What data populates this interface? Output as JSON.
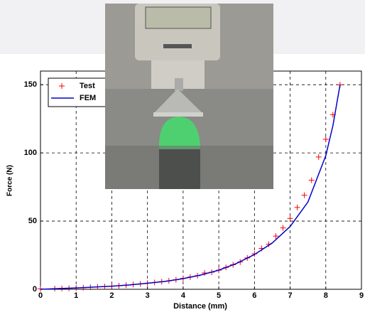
{
  "chart_data": {
    "type": "line",
    "xlabel": "Distance (mm)",
    "ylabel": "Force (N)",
    "xlim": [
      0,
      9
    ],
    "xticks": [
      0,
      1,
      2,
      3,
      4,
      5,
      6,
      7,
      8,
      9
    ],
    "ylim": [
      0,
      160
    ],
    "yticks": [
      0,
      50,
      100,
      150
    ],
    "grid": true,
    "legend": "upper left",
    "series": [
      {
        "name": "Test",
        "color": "#ff0000",
        "marker": "+",
        "x": [
          0,
          0.4,
          0.6,
          0.8,
          1.0,
          1.2,
          1.4,
          1.6,
          1.8,
          2.0,
          2.2,
          2.4,
          2.6,
          2.8,
          3.0,
          3.2,
          3.4,
          3.6,
          3.8,
          4.0,
          4.2,
          4.4,
          4.6,
          4.8,
          5.0,
          5.2,
          5.4,
          5.6,
          5.8,
          6.0,
          6.2,
          6.4,
          6.6,
          6.8,
          7.0,
          7.2,
          7.4,
          7.6,
          7.8,
          8.0,
          8.2,
          8.4
        ],
        "values": [
          0.3,
          0.5,
          0.6,
          0.7,
          1,
          1.2,
          1.5,
          1.8,
          2,
          2.3,
          2.6,
          3,
          3.5,
          4,
          4.5,
          5,
          5.6,
          6.2,
          7,
          8,
          9,
          10,
          12,
          12.5,
          14,
          16,
          18,
          20,
          23,
          26,
          30,
          33,
          39,
          45,
          52,
          60,
          69,
          80,
          97,
          110,
          128,
          150
        ]
      },
      {
        "name": "FEM",
        "color": "#0000cc",
        "marker": "line",
        "x": [
          0,
          0.5,
          1,
          1.5,
          2,
          2.5,
          3,
          3.5,
          4,
          4.5,
          5,
          5.5,
          6,
          6.5,
          7,
          7.5,
          8,
          8.2,
          8.4
        ],
        "values": [
          0,
          0.5,
          1,
          1.6,
          2.3,
          3.2,
          4.4,
          5.8,
          7.8,
          10.5,
          14,
          19,
          25.5,
          34,
          46,
          64,
          98,
          120,
          150
        ]
      }
    ]
  }
}
